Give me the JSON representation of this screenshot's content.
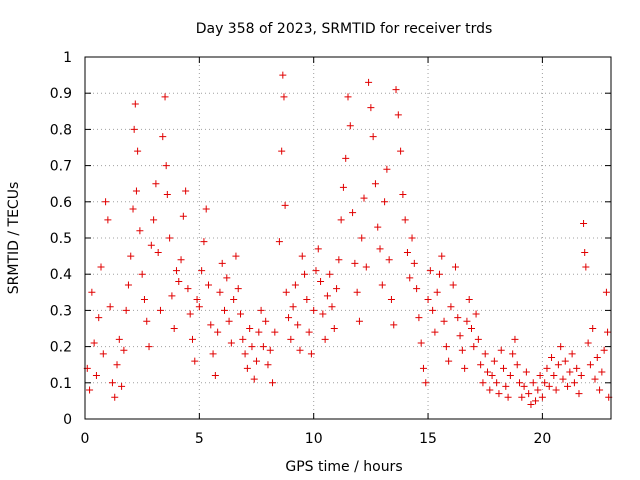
{
  "chart_data": {
    "type": "scatter",
    "title": "Day 358 of 2023, SRMTID for receiver trds",
    "xlabel": "GPS time / hours",
    "ylabel": "SRMTID / TECUs",
    "xlim": [
      0,
      23
    ],
    "ylim": [
      0,
      1
    ],
    "xticks": [
      0,
      5,
      10,
      15,
      20
    ],
    "xtick_labels": [
      "0",
      "5",
      "10",
      "15",
      "20"
    ],
    "yticks": [
      0,
      0.1,
      0.2,
      0.3,
      0.4,
      0.5,
      0.6,
      0.7,
      0.8,
      0.9,
      1
    ],
    "ytick_labels": [
      "0",
      "0.1",
      "0.2",
      "0.3",
      "0.4",
      "0.5",
      "0.6",
      "0.7",
      "0.8",
      "0.9",
      "1"
    ],
    "grid": true,
    "marker": "+",
    "color": "#e00000",
    "series": [
      {
        "name": "trds",
        "points": [
          [
            0.1,
            0.14
          ],
          [
            0.2,
            0.08
          ],
          [
            0.3,
            0.35
          ],
          [
            0.4,
            0.21
          ],
          [
            0.5,
            0.12
          ],
          [
            0.6,
            0.28
          ],
          [
            0.7,
            0.42
          ],
          [
            0.8,
            0.18
          ],
          [
            0.9,
            0.6
          ],
          [
            1.0,
            0.55
          ],
          [
            1.1,
            0.31
          ],
          [
            1.2,
            0.1
          ],
          [
            1.3,
            0.06
          ],
          [
            1.4,
            0.15
          ],
          [
            1.5,
            0.22
          ],
          [
            1.6,
            0.09
          ],
          [
            1.7,
            0.19
          ],
          [
            1.8,
            0.3
          ],
          [
            1.9,
            0.37
          ],
          [
            2.0,
            0.45
          ],
          [
            2.1,
            0.58
          ],
          [
            2.15,
            0.8
          ],
          [
            2.2,
            0.87
          ],
          [
            2.25,
            0.63
          ],
          [
            2.3,
            0.74
          ],
          [
            2.4,
            0.52
          ],
          [
            2.5,
            0.4
          ],
          [
            2.6,
            0.33
          ],
          [
            2.7,
            0.27
          ],
          [
            2.8,
            0.2
          ],
          [
            2.9,
            0.48
          ],
          [
            3.0,
            0.55
          ],
          [
            3.1,
            0.65
          ],
          [
            3.2,
            0.46
          ],
          [
            3.3,
            0.3
          ],
          [
            3.4,
            0.78
          ],
          [
            3.5,
            0.89
          ],
          [
            3.55,
            0.7
          ],
          [
            3.6,
            0.62
          ],
          [
            3.7,
            0.5
          ],
          [
            3.8,
            0.34
          ],
          [
            3.9,
            0.25
          ],
          [
            4.0,
            0.41
          ],
          [
            4.1,
            0.38
          ],
          [
            4.2,
            0.44
          ],
          [
            4.3,
            0.56
          ],
          [
            4.4,
            0.63
          ],
          [
            4.5,
            0.36
          ],
          [
            4.6,
            0.29
          ],
          [
            4.7,
            0.22
          ],
          [
            4.8,
            0.16
          ],
          [
            4.9,
            0.33
          ],
          [
            5.0,
            0.31
          ],
          [
            5.1,
            0.41
          ],
          [
            5.2,
            0.49
          ],
          [
            5.3,
            0.58
          ],
          [
            5.4,
            0.37
          ],
          [
            5.5,
            0.26
          ],
          [
            5.6,
            0.18
          ],
          [
            5.7,
            0.12
          ],
          [
            5.8,
            0.24
          ],
          [
            5.9,
            0.35
          ],
          [
            6.0,
            0.43
          ],
          [
            6.1,
            0.3
          ],
          [
            6.2,
            0.39
          ],
          [
            6.3,
            0.27
          ],
          [
            6.4,
            0.21
          ],
          [
            6.5,
            0.33
          ],
          [
            6.6,
            0.45
          ],
          [
            6.7,
            0.36
          ],
          [
            6.8,
            0.29
          ],
          [
            6.9,
            0.22
          ],
          [
            7.0,
            0.18
          ],
          [
            7.1,
            0.14
          ],
          [
            7.2,
            0.25
          ],
          [
            7.3,
            0.2
          ],
          [
            7.4,
            0.11
          ],
          [
            7.5,
            0.16
          ],
          [
            7.6,
            0.24
          ],
          [
            7.7,
            0.3
          ],
          [
            7.8,
            0.2
          ],
          [
            7.9,
            0.27
          ],
          [
            8.0,
            0.15
          ],
          [
            8.1,
            0.19
          ],
          [
            8.2,
            0.1
          ],
          [
            8.3,
            0.24
          ],
          [
            8.5,
            0.49
          ],
          [
            8.6,
            0.74
          ],
          [
            8.65,
            0.95
          ],
          [
            8.7,
            0.89
          ],
          [
            8.75,
            0.59
          ],
          [
            8.8,
            0.35
          ],
          [
            8.9,
            0.28
          ],
          [
            9.0,
            0.22
          ],
          [
            9.1,
            0.31
          ],
          [
            9.2,
            0.37
          ],
          [
            9.3,
            0.26
          ],
          [
            9.4,
            0.19
          ],
          [
            9.5,
            0.45
          ],
          [
            9.6,
            0.4
          ],
          [
            9.7,
            0.33
          ],
          [
            9.8,
            0.24
          ],
          [
            9.9,
            0.18
          ],
          [
            10.0,
            0.3
          ],
          [
            10.1,
            0.41
          ],
          [
            10.2,
            0.47
          ],
          [
            10.3,
            0.38
          ],
          [
            10.4,
            0.29
          ],
          [
            10.5,
            0.22
          ],
          [
            10.6,
            0.34
          ],
          [
            10.7,
            0.4
          ],
          [
            10.8,
            0.31
          ],
          [
            10.9,
            0.25
          ],
          [
            11.0,
            0.36
          ],
          [
            11.1,
            0.44
          ],
          [
            11.2,
            0.55
          ],
          [
            11.3,
            0.64
          ],
          [
            11.4,
            0.72
          ],
          [
            11.5,
            0.89
          ],
          [
            11.6,
            0.81
          ],
          [
            11.7,
            0.57
          ],
          [
            11.8,
            0.43
          ],
          [
            11.9,
            0.35
          ],
          [
            12.0,
            0.27
          ],
          [
            12.1,
            0.5
          ],
          [
            12.2,
            0.61
          ],
          [
            12.3,
            0.42
          ],
          [
            12.4,
            0.93
          ],
          [
            12.5,
            0.86
          ],
          [
            12.6,
            0.78
          ],
          [
            12.7,
            0.65
          ],
          [
            12.8,
            0.53
          ],
          [
            12.9,
            0.47
          ],
          [
            13.0,
            0.37
          ],
          [
            13.1,
            0.6
          ],
          [
            13.2,
            0.69
          ],
          [
            13.3,
            0.44
          ],
          [
            13.4,
            0.33
          ],
          [
            13.5,
            0.26
          ],
          [
            13.6,
            0.91
          ],
          [
            13.7,
            0.84
          ],
          [
            13.8,
            0.74
          ],
          [
            13.9,
            0.62
          ],
          [
            14.0,
            0.55
          ],
          [
            14.1,
            0.46
          ],
          [
            14.2,
            0.39
          ],
          [
            14.3,
            0.5
          ],
          [
            14.4,
            0.43
          ],
          [
            14.5,
            0.36
          ],
          [
            14.6,
            0.28
          ],
          [
            14.7,
            0.21
          ],
          [
            14.8,
            0.14
          ],
          [
            14.9,
            0.1
          ],
          [
            15.0,
            0.33
          ],
          [
            15.1,
            0.41
          ],
          [
            15.2,
            0.3
          ],
          [
            15.3,
            0.24
          ],
          [
            15.4,
            0.35
          ],
          [
            15.5,
            0.4
          ],
          [
            15.6,
            0.45
          ],
          [
            15.7,
            0.27
          ],
          [
            15.8,
            0.2
          ],
          [
            15.9,
            0.16
          ],
          [
            16.0,
            0.31
          ],
          [
            16.1,
            0.37
          ],
          [
            16.2,
            0.42
          ],
          [
            16.3,
            0.28
          ],
          [
            16.4,
            0.23
          ],
          [
            16.5,
            0.19
          ],
          [
            16.6,
            0.14
          ],
          [
            16.7,
            0.27
          ],
          [
            16.8,
            0.33
          ],
          [
            16.9,
            0.25
          ],
          [
            17.0,
            0.2
          ],
          [
            17.1,
            0.29
          ],
          [
            17.2,
            0.22
          ],
          [
            17.3,
            0.15
          ],
          [
            17.4,
            0.1
          ],
          [
            17.5,
            0.18
          ],
          [
            17.6,
            0.13
          ],
          [
            17.7,
            0.08
          ],
          [
            17.8,
            0.12
          ],
          [
            17.9,
            0.16
          ],
          [
            18.0,
            0.1
          ],
          [
            18.1,
            0.07
          ],
          [
            18.2,
            0.19
          ],
          [
            18.3,
            0.14
          ],
          [
            18.4,
            0.09
          ],
          [
            18.5,
            0.06
          ],
          [
            18.6,
            0.12
          ],
          [
            18.7,
            0.18
          ],
          [
            18.8,
            0.22
          ],
          [
            18.9,
            0.15
          ],
          [
            19.0,
            0.1
          ],
          [
            19.1,
            0.06
          ],
          [
            19.2,
            0.09
          ],
          [
            19.3,
            0.13
          ],
          [
            19.4,
            0.07
          ],
          [
            19.5,
            0.04
          ],
          [
            19.6,
            0.1
          ],
          [
            19.7,
            0.05
          ],
          [
            19.8,
            0.08
          ],
          [
            19.9,
            0.12
          ],
          [
            20.0,
            0.06
          ],
          [
            20.1,
            0.1
          ],
          [
            20.2,
            0.14
          ],
          [
            20.3,
            0.09
          ],
          [
            20.4,
            0.17
          ],
          [
            20.5,
            0.12
          ],
          [
            20.6,
            0.08
          ],
          [
            20.7,
            0.15
          ],
          [
            20.8,
            0.2
          ],
          [
            20.9,
            0.11
          ],
          [
            21.0,
            0.16
          ],
          [
            21.1,
            0.09
          ],
          [
            21.2,
            0.13
          ],
          [
            21.3,
            0.18
          ],
          [
            21.4,
            0.1
          ],
          [
            21.5,
            0.14
          ],
          [
            21.6,
            0.07
          ],
          [
            21.7,
            0.12
          ],
          [
            21.8,
            0.54
          ],
          [
            21.85,
            0.46
          ],
          [
            21.9,
            0.42
          ],
          [
            22.0,
            0.21
          ],
          [
            22.1,
            0.15
          ],
          [
            22.2,
            0.25
          ],
          [
            22.3,
            0.11
          ],
          [
            22.4,
            0.17
          ],
          [
            22.5,
            0.08
          ],
          [
            22.6,
            0.13
          ],
          [
            22.7,
            0.19
          ],
          [
            22.8,
            0.35
          ],
          [
            22.85,
            0.24
          ],
          [
            22.9,
            0.06
          ]
        ]
      }
    ]
  }
}
